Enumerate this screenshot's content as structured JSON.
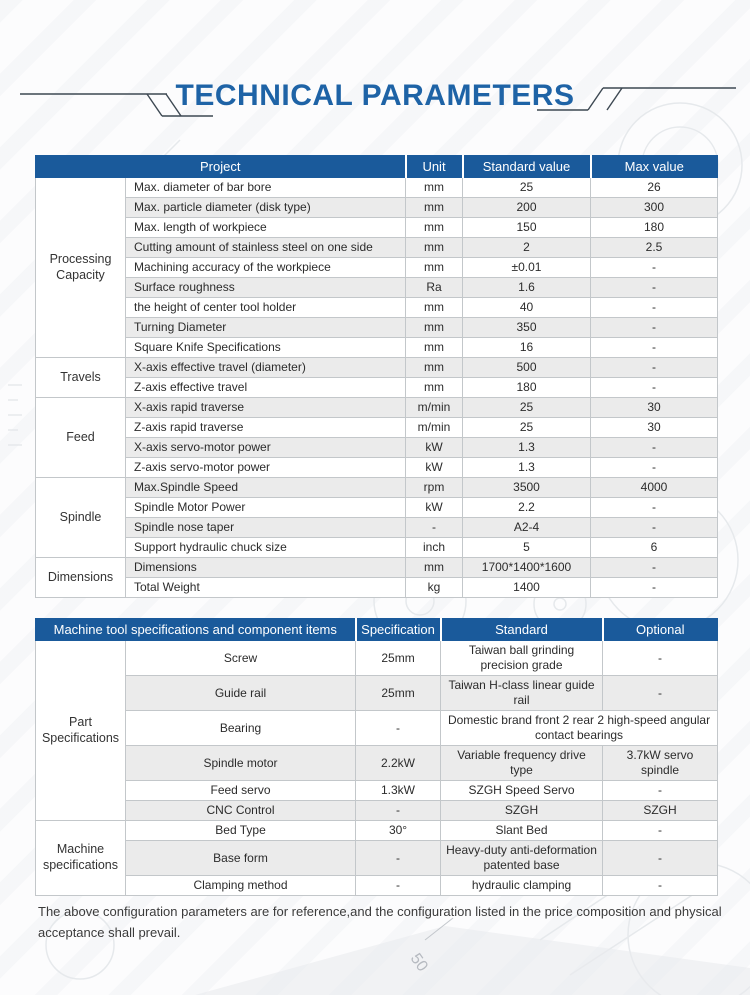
{
  "title": "TECHNICAL PARAMETERS",
  "colors": {
    "header_blue": "#1a5a9b",
    "title_blue": "#1e63a6",
    "alt_row_gray": "#ebebeb",
    "cell_border": "#c3c7ca"
  },
  "table1": {
    "headers": [
      {
        "label": "Project",
        "colspan": 2
      },
      {
        "label": "Unit"
      },
      {
        "label": "Standard value"
      },
      {
        "label": "Max value"
      }
    ],
    "groups": [
      {
        "label": "Processing Capacity",
        "rows": [
          [
            "Max. diameter of bar bore",
            "mm",
            "25",
            "26"
          ],
          [
            "Max. particle diameter (disk type)",
            "mm",
            "200",
            "300"
          ],
          [
            "Max. length of workpiece",
            "mm",
            "150",
            "180"
          ],
          [
            "Cutting amount of stainless steel on one side",
            "mm",
            "2",
            "2.5"
          ],
          [
            "Machining accuracy of the workpiece",
            "mm",
            "±0.01",
            "-"
          ],
          [
            "Surface roughness",
            "Ra",
            "1.6",
            "-"
          ],
          [
            "the height of center tool holder",
            "mm",
            "40",
            "-"
          ],
          [
            "Turning Diameter",
            "mm",
            "350",
            "-"
          ],
          [
            "Square Knife Specifications",
            "mm",
            "16",
            "-"
          ]
        ]
      },
      {
        "label": "Travels",
        "rows": [
          [
            "X-axis effective travel (diameter)",
            "mm",
            "500",
            "-"
          ],
          [
            "Z-axis effective travel",
            "mm",
            "180",
            "-"
          ]
        ]
      },
      {
        "label": "Feed",
        "rows": [
          [
            "X-axis rapid traverse",
            "m/min",
            "25",
            "30"
          ],
          [
            "Z-axis rapid traverse",
            "m/min",
            "25",
            "30"
          ],
          [
            "X-axis servo-motor power",
            "kW",
            "1.3",
            "-"
          ],
          [
            "Z-axis servo-motor power",
            "kW",
            "1.3",
            "-"
          ]
        ]
      },
      {
        "label": "Spindle",
        "rows": [
          [
            "Max.Spindle Speed",
            "rpm",
            "3500",
            "4000"
          ],
          [
            "Spindle Motor Power",
            "kW",
            "2.2",
            "-"
          ],
          [
            "Spindle nose taper",
            "-",
            "A2-4",
            "-"
          ],
          [
            "Support hydraulic chuck size",
            "inch",
            "5",
            "6"
          ]
        ]
      },
      {
        "label": "Dimensions",
        "rows": [
          [
            "Dimensions",
            "mm",
            "1700*1400*1600",
            "-"
          ],
          [
            "Total Weight",
            "kg",
            "1400",
            "-"
          ]
        ]
      }
    ]
  },
  "table2": {
    "headers": [
      {
        "label": "Machine tool specifications and component items",
        "colspan": 2
      },
      {
        "label": "Specification"
      },
      {
        "label": "Standard"
      },
      {
        "label": "Optional"
      }
    ],
    "groups": [
      {
        "label": "Part Specifications",
        "rows": [
          [
            "Screw",
            "25mm",
            "Taiwan ball grinding precision grade",
            "-"
          ],
          [
            "Guide rail",
            "25mm",
            "Taiwan H-class linear guide rail",
            "-"
          ],
          [
            "Bearing",
            "-",
            {
              "text": "Domestic brand front 2 rear 2 high-speed angular contact bearings",
              "colspan": 2
            }
          ],
          [
            "Spindle motor",
            "2.2kW",
            "Variable frequency drive type",
            "3.7kW servo spindle"
          ],
          [
            "Feed servo",
            "1.3kW",
            "SZGH Speed Servo",
            "-"
          ],
          [
            "CNC Control",
            "-",
            "SZGH",
            "SZGH"
          ]
        ]
      },
      {
        "label": "Machine specifications",
        "rows": [
          [
            "Bed Type",
            "30°",
            "Slant Bed",
            "-"
          ],
          [
            "Base form",
            "-",
            "Heavy-duty anti-deformation patented base",
            "-"
          ],
          [
            "Clamping method",
            "-",
            "hydraulic clamping",
            "-"
          ]
        ]
      }
    ]
  },
  "footer": {
    "note": "The above configuration parameters are for reference,and the configuration listed in the price composition and physical acceptance shall prevail."
  },
  "background_marks": {
    "dimension_label": "50"
  }
}
